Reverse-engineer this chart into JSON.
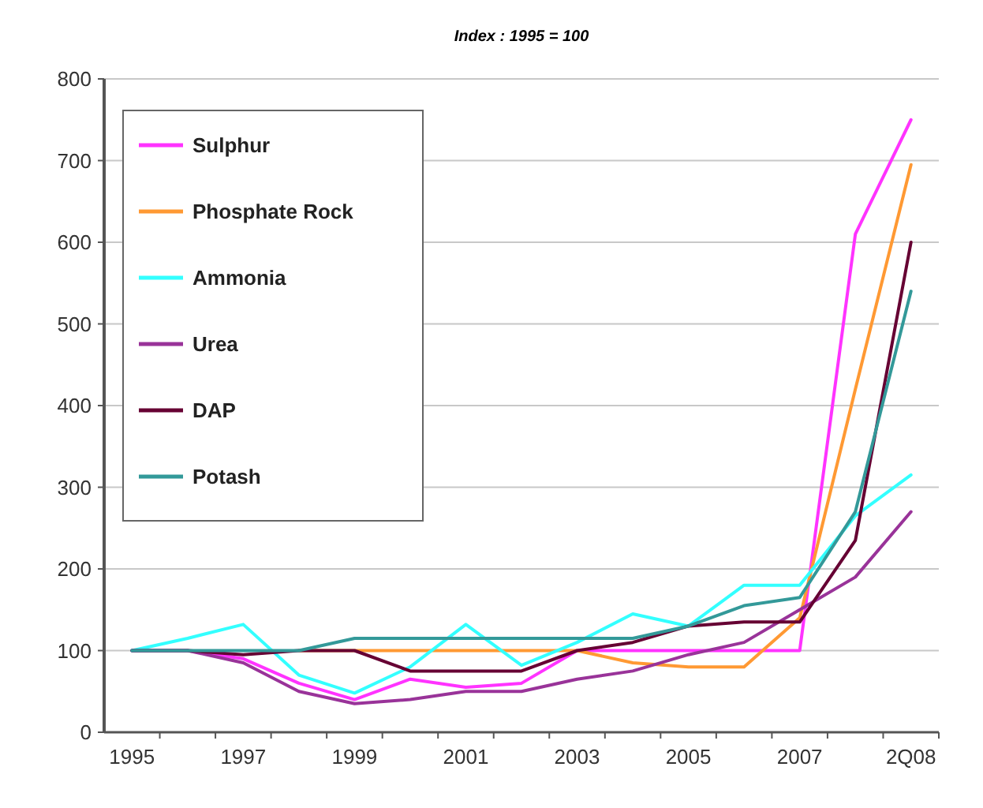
{
  "chart_data": {
    "type": "line",
    "title": "Index : 1995 = 100",
    "categories": [
      "1995",
      null,
      "1997",
      null,
      "1999",
      null,
      "2001",
      null,
      "2003",
      null,
      "2005",
      null,
      "2007",
      null,
      "2Q08"
    ],
    "series": [
      {
        "name": "Sulphur",
        "color": "#ff33ff",
        "values": [
          100,
          100,
          90,
          60,
          40,
          65,
          55,
          60,
          100,
          100,
          100,
          100,
          100,
          610,
          750
        ]
      },
      {
        "name": "Phosphate Rock",
        "color": "#ff9933",
        "values": [
          null,
          null,
          null,
          100,
          100,
          100,
          100,
          100,
          100,
          85,
          80,
          80,
          140,
          420,
          695
        ]
      },
      {
        "name": "Ammonia",
        "color": "#33ffff",
        "values": [
          100,
          115,
          132,
          70,
          48,
          80,
          132,
          82,
          110,
          145,
          130,
          180,
          180,
          265,
          315
        ]
      },
      {
        "name": "Urea",
        "color": "#993399",
        "values": [
          100,
          100,
          85,
          50,
          35,
          40,
          50,
          50,
          65,
          75,
          95,
          110,
          150,
          190,
          270
        ]
      },
      {
        "name": "DAP",
        "color": "#660033",
        "values": [
          100,
          100,
          95,
          100,
          100,
          75,
          75,
          75,
          100,
          110,
          130,
          135,
          135,
          235,
          600
        ]
      },
      {
        "name": "Potash",
        "color": "#339999",
        "values": [
          100,
          100,
          100,
          100,
          115,
          115,
          115,
          115,
          115,
          115,
          130,
          155,
          165,
          270,
          540
        ]
      }
    ],
    "ylim": [
      0,
      800
    ],
    "yticks": [
      0,
      100,
      200,
      300,
      400,
      500,
      600,
      700,
      800
    ],
    "grid": "y",
    "legend": "top left",
    "marker": "none",
    "line_style": "solid"
  }
}
